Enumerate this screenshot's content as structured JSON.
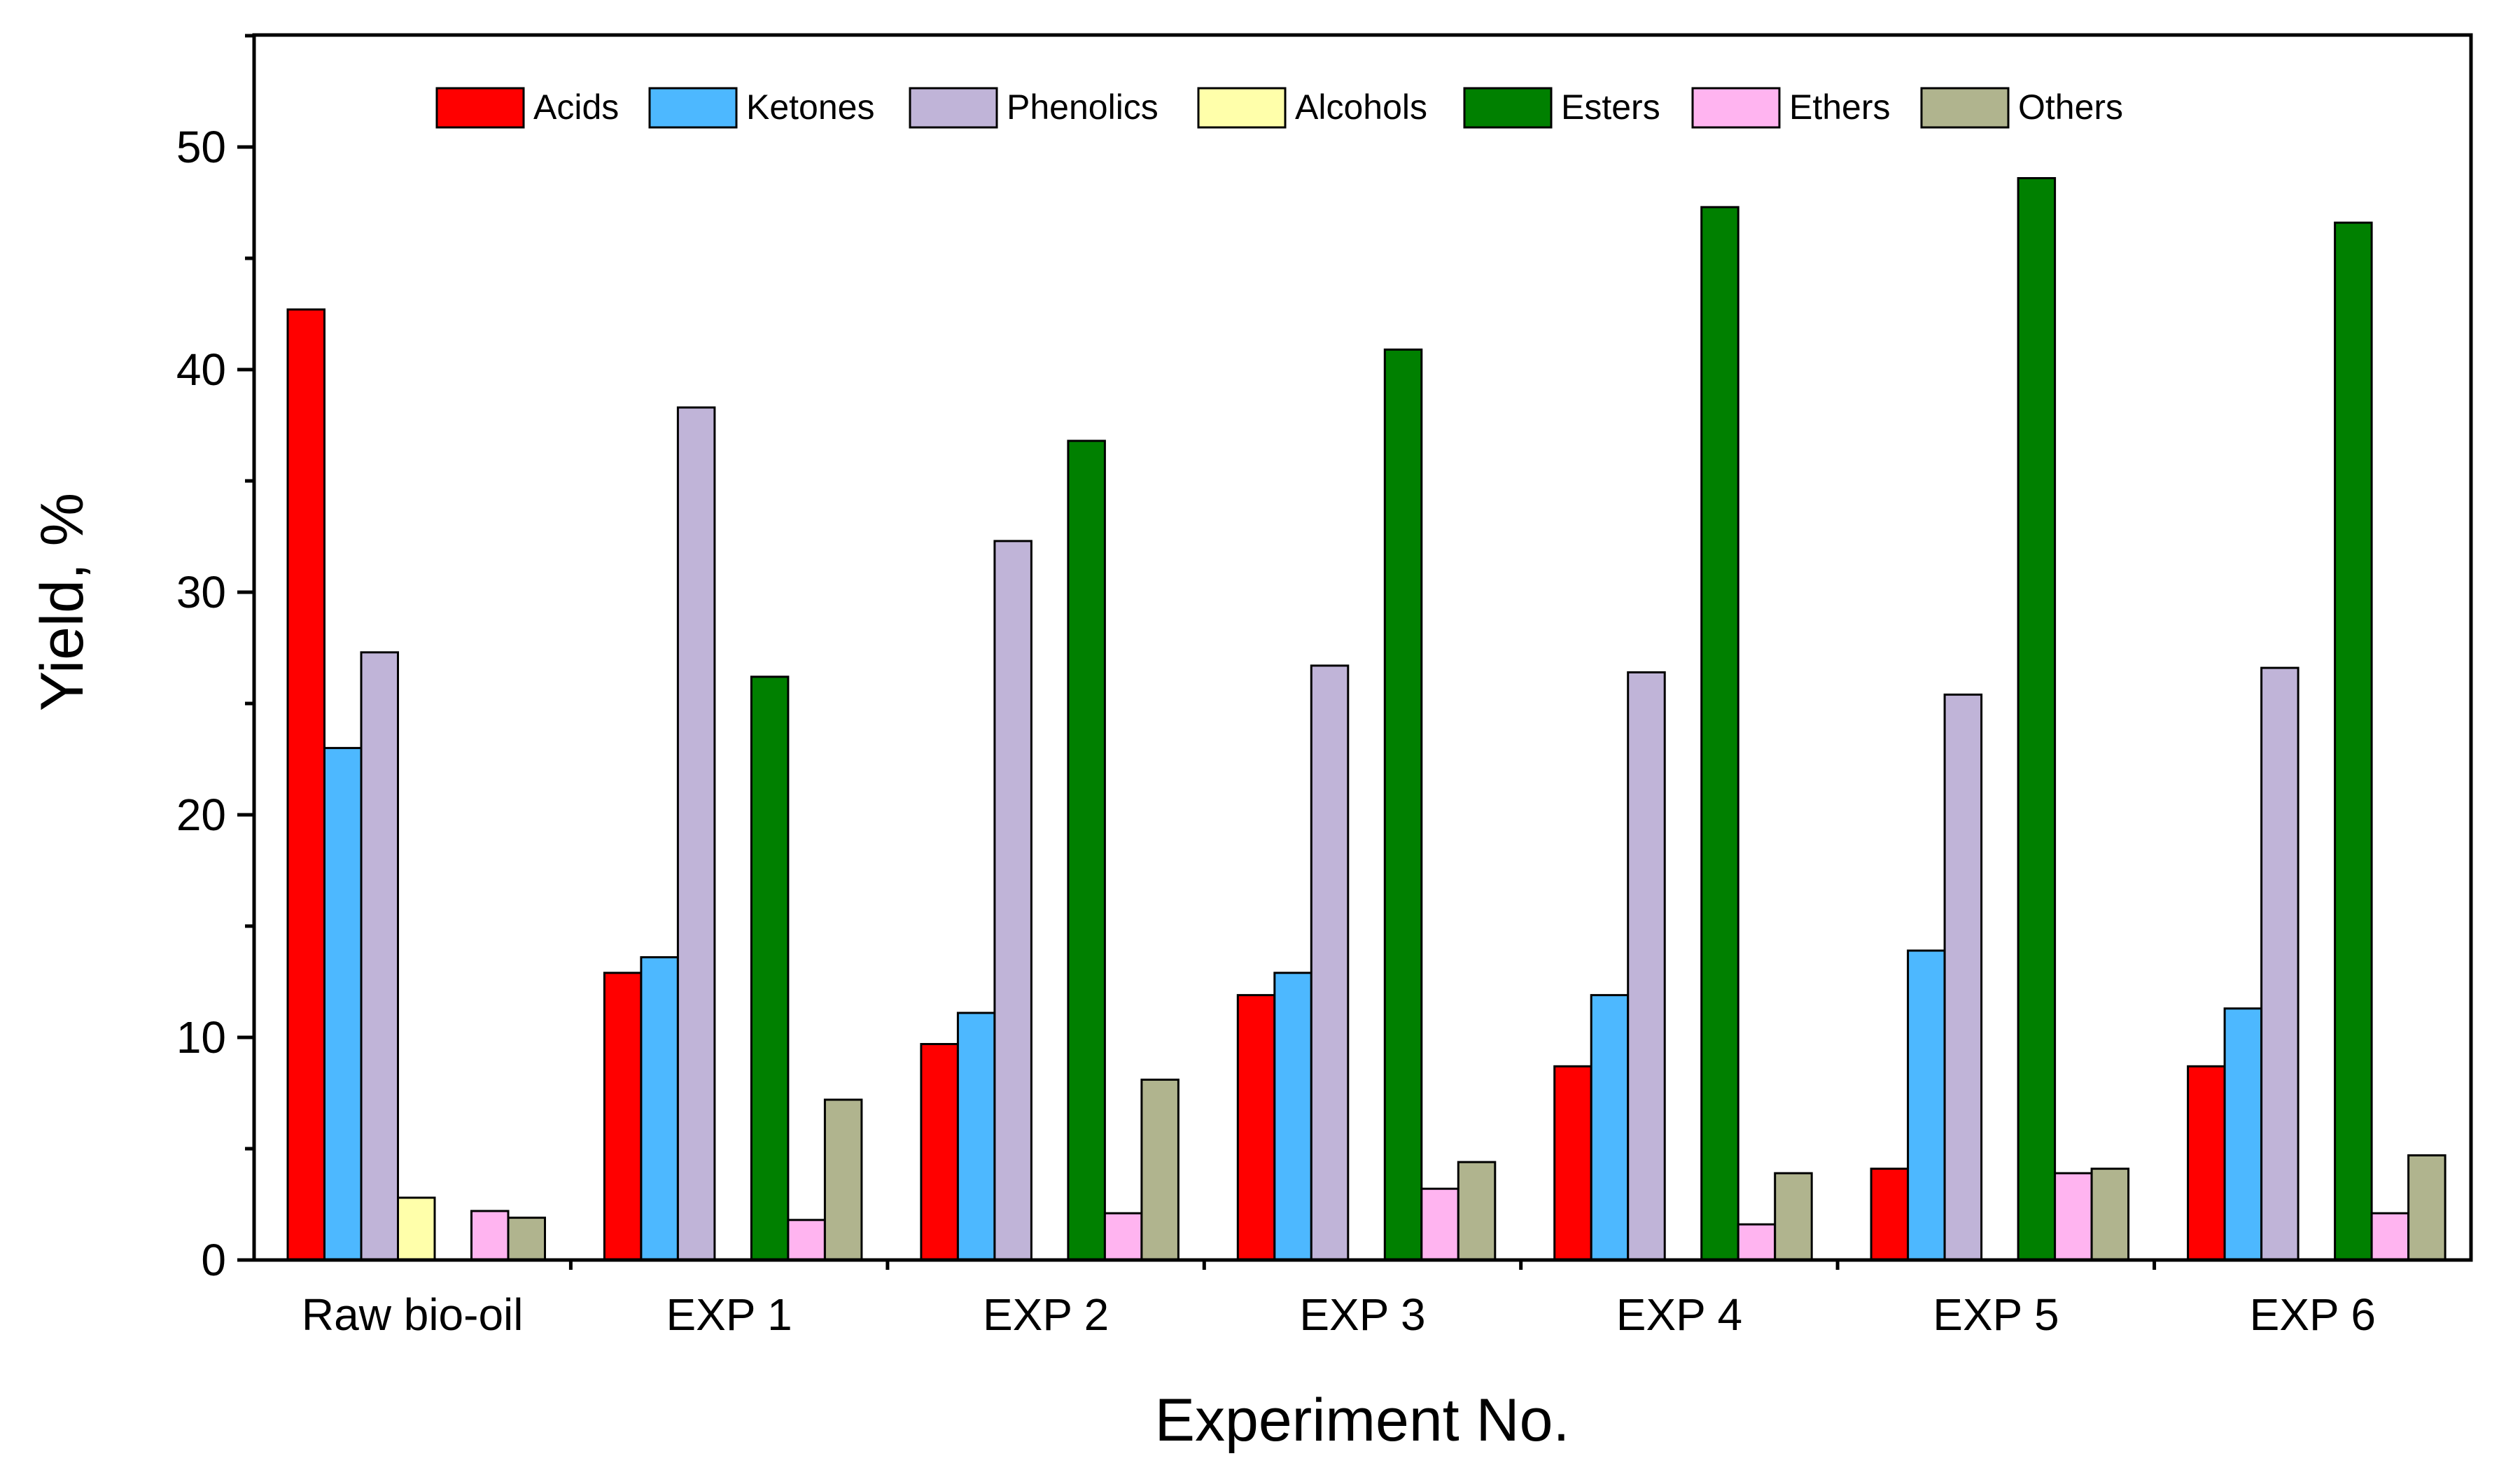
{
  "chart_data": {
    "type": "bar",
    "title": "",
    "xlabel": "Experiment No.",
    "ylabel": "Yield, %",
    "ylim": [
      0,
      55
    ],
    "yticks": [
      0,
      10,
      20,
      30,
      40,
      50
    ],
    "grid": false,
    "legend_position": "top",
    "categories": [
      "Raw bio-oil",
      "EXP 1",
      "EXP 2",
      "EXP 3",
      "EXP 4",
      "EXP 5",
      "EXP 6"
    ],
    "series": [
      {
        "name": "Acids",
        "color": "#ff0000",
        "values": [
          42.7,
          12.9,
          9.7,
          11.9,
          8.7,
          4.1,
          8.7
        ]
      },
      {
        "name": "Ketones",
        "color": "#4db8ff",
        "values": [
          23.0,
          13.6,
          11.1,
          12.9,
          11.9,
          13.9,
          11.3
        ]
      },
      {
        "name": "Phenolics",
        "color": "#c0b4d8",
        "values": [
          27.3,
          38.3,
          32.3,
          26.7,
          26.4,
          25.4,
          26.6
        ]
      },
      {
        "name": "Alcohols",
        "color": "#ffffaa",
        "values": [
          2.8,
          0,
          0,
          0,
          0,
          0,
          0
        ]
      },
      {
        "name": "Esters",
        "color": "#008000",
        "values": [
          0,
          26.2,
          36.8,
          40.9,
          47.3,
          48.6,
          46.6
        ]
      },
      {
        "name": "Ethers",
        "color": "#ffb4f0",
        "values": [
          2.2,
          1.8,
          2.1,
          3.2,
          1.6,
          3.9,
          2.1
        ]
      },
      {
        "name": "Others",
        "color": "#b0b48e",
        "values": [
          1.9,
          7.2,
          8.1,
          4.4,
          3.9,
          4.1,
          4.7
        ]
      }
    ]
  }
}
